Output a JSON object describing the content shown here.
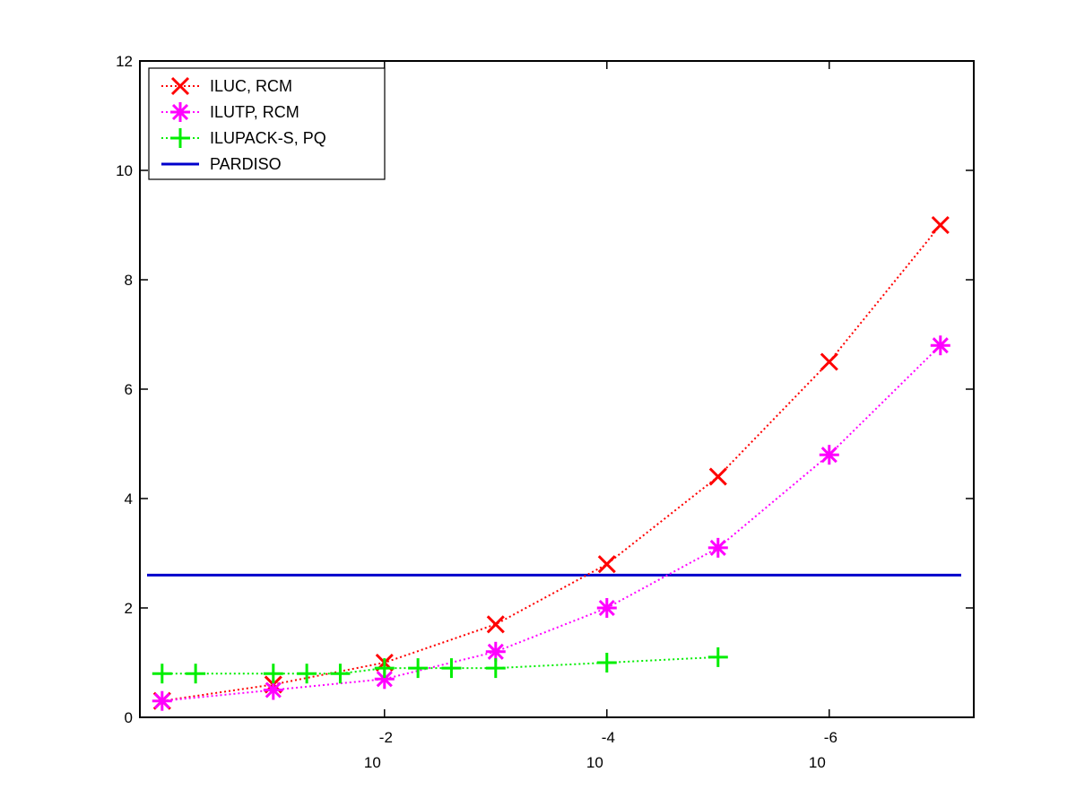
{
  "chart_data": {
    "type": "line",
    "title": "",
    "xlabel": "",
    "ylabel": "",
    "x_scale": "log10, reversed (10^0 at left, 10^-7 at right)",
    "x_exponent_range": [
      0,
      -7
    ],
    "x_ticks": [
      {
        "base": "10",
        "exponent": "-2",
        "value": 0.01
      },
      {
        "base": "10",
        "exponent": "-4",
        "value": 0.0001
      },
      {
        "base": "10",
        "exponent": "-6",
        "value": 1e-06
      }
    ],
    "ylim": [
      0,
      12
    ],
    "y_ticks": [
      "0",
      "2",
      "4",
      "6",
      "8",
      "10",
      "12"
    ],
    "grid": false,
    "legend_position": "top-left",
    "series": [
      {
        "name": "ILUC, RCM",
        "color": "#ff0000",
        "marker": "x",
        "line": "dotted",
        "x": [
          1,
          0.1,
          0.01,
          0.001,
          0.0001,
          1e-05,
          1e-06,
          1e-07
        ],
        "y": [
          0.3,
          0.6,
          1.0,
          1.7,
          2.8,
          4.4,
          6.5,
          9.0
        ]
      },
      {
        "name": "ILUTP, RCM",
        "color": "#ff00ff",
        "marker": "asterisk",
        "line": "dotted",
        "x": [
          1,
          0.1,
          0.01,
          0.001,
          0.0001,
          1e-05,
          1e-06,
          1e-07
        ],
        "y": [
          0.3,
          0.5,
          0.7,
          1.2,
          2.0,
          3.1,
          4.8,
          6.8
        ]
      },
      {
        "name": "ILUPACK-S, PQ",
        "color": "#00ee00",
        "marker": "plus",
        "line": "dotted",
        "x": [
          1,
          0.5,
          0.1,
          0.05,
          0.025,
          0.01,
          0.005,
          0.0025,
          0.001,
          0.0001,
          1e-05
        ],
        "y": [
          0.8,
          0.8,
          0.8,
          0.8,
          0.8,
          0.9,
          0.9,
          0.9,
          0.9,
          1.0,
          1.1
        ]
      },
      {
        "name": "PARDISO",
        "color": "#0000cc",
        "marker": "none",
        "line": "solid",
        "x": [
          1,
          1e-07
        ],
        "y": [
          2.6,
          2.6
        ]
      }
    ]
  }
}
